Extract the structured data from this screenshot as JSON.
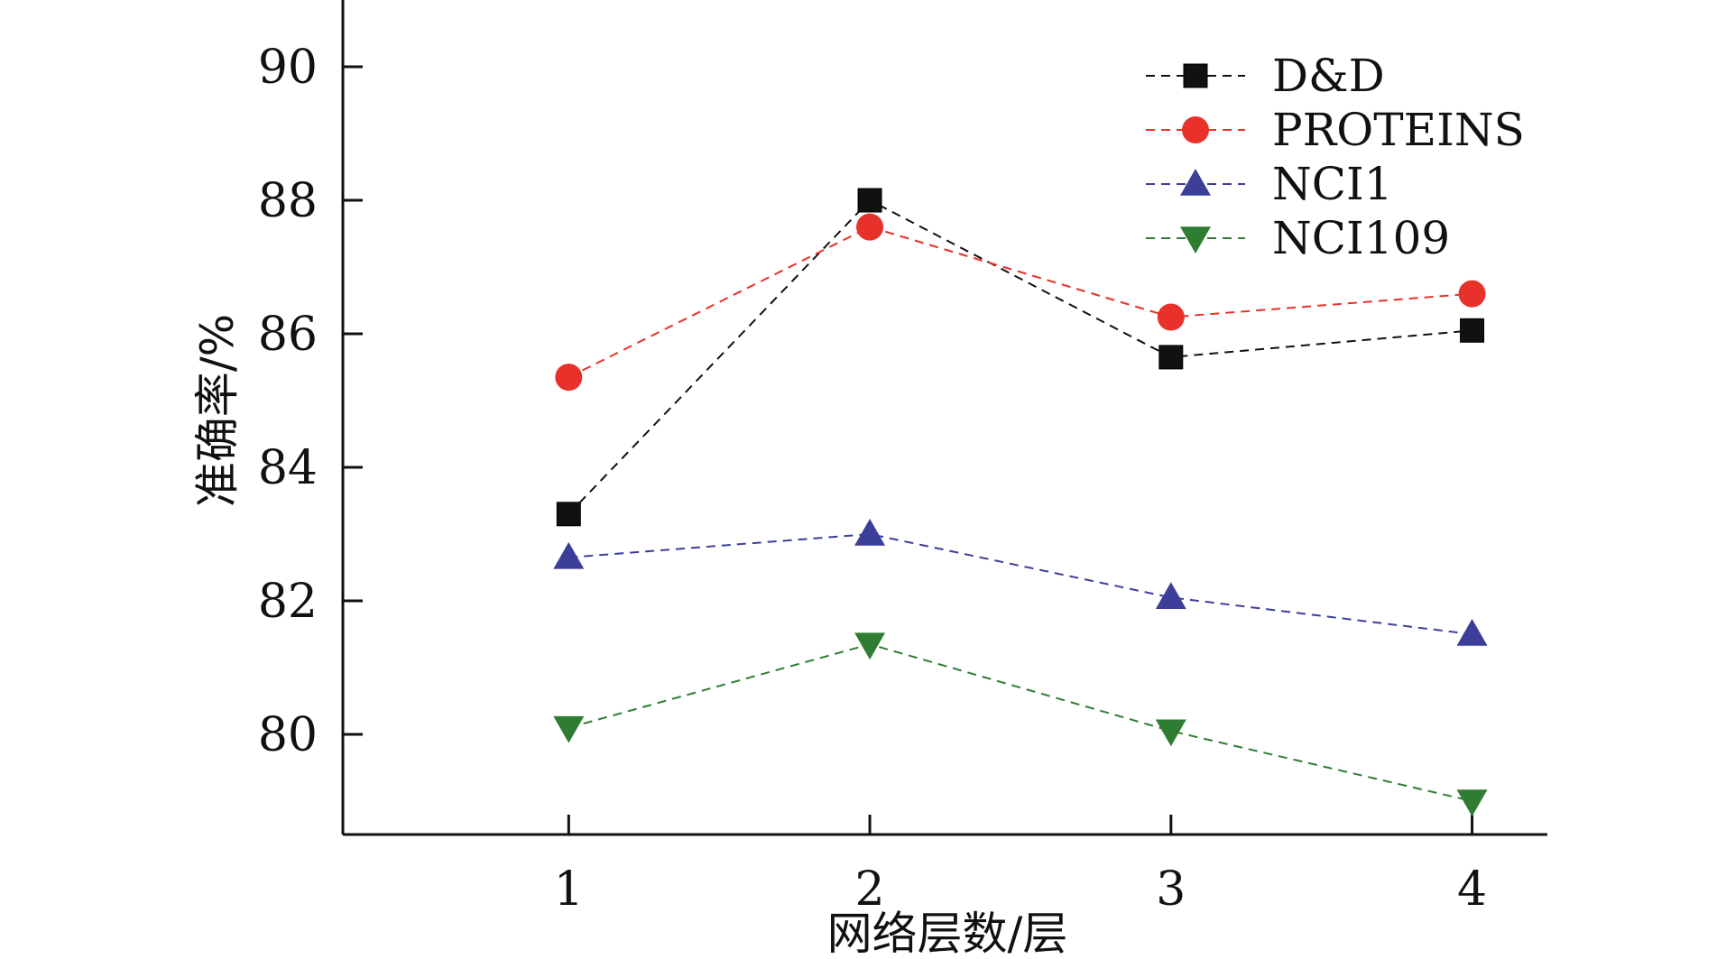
{
  "chart_data": {
    "type": "line",
    "title": "",
    "xlabel": "网络层数/层",
    "ylabel": "准确率/%",
    "x": [
      1,
      2,
      3,
      4
    ],
    "x_ticks": [
      "1",
      "2",
      "3",
      "4"
    ],
    "y_ticks": [
      "80",
      "82",
      "84",
      "86",
      "88",
      "90"
    ],
    "ylim": [
      78.5,
      91
    ],
    "xlim": [
      0.25,
      4.25
    ],
    "grid": false,
    "legend_position": "top-right",
    "series": [
      {
        "name": "D&D",
        "values": [
          83.3,
          88.0,
          85.65,
          86.05
        ],
        "color": "#111111",
        "marker": "square"
      },
      {
        "name": "PROTEINS",
        "values": [
          85.35,
          87.6,
          86.25,
          86.6
        ],
        "color": "#e8312b",
        "marker": "circle"
      },
      {
        "name": "NCI1",
        "values": [
          82.65,
          83.0,
          82.05,
          81.5
        ],
        "color": "#3b3f9a",
        "marker": "triangle-up"
      },
      {
        "name": "NCI109",
        "values": [
          80.1,
          81.35,
          80.05,
          79.0
        ],
        "color": "#2e7d32",
        "marker": "triangle-down"
      }
    ]
  }
}
